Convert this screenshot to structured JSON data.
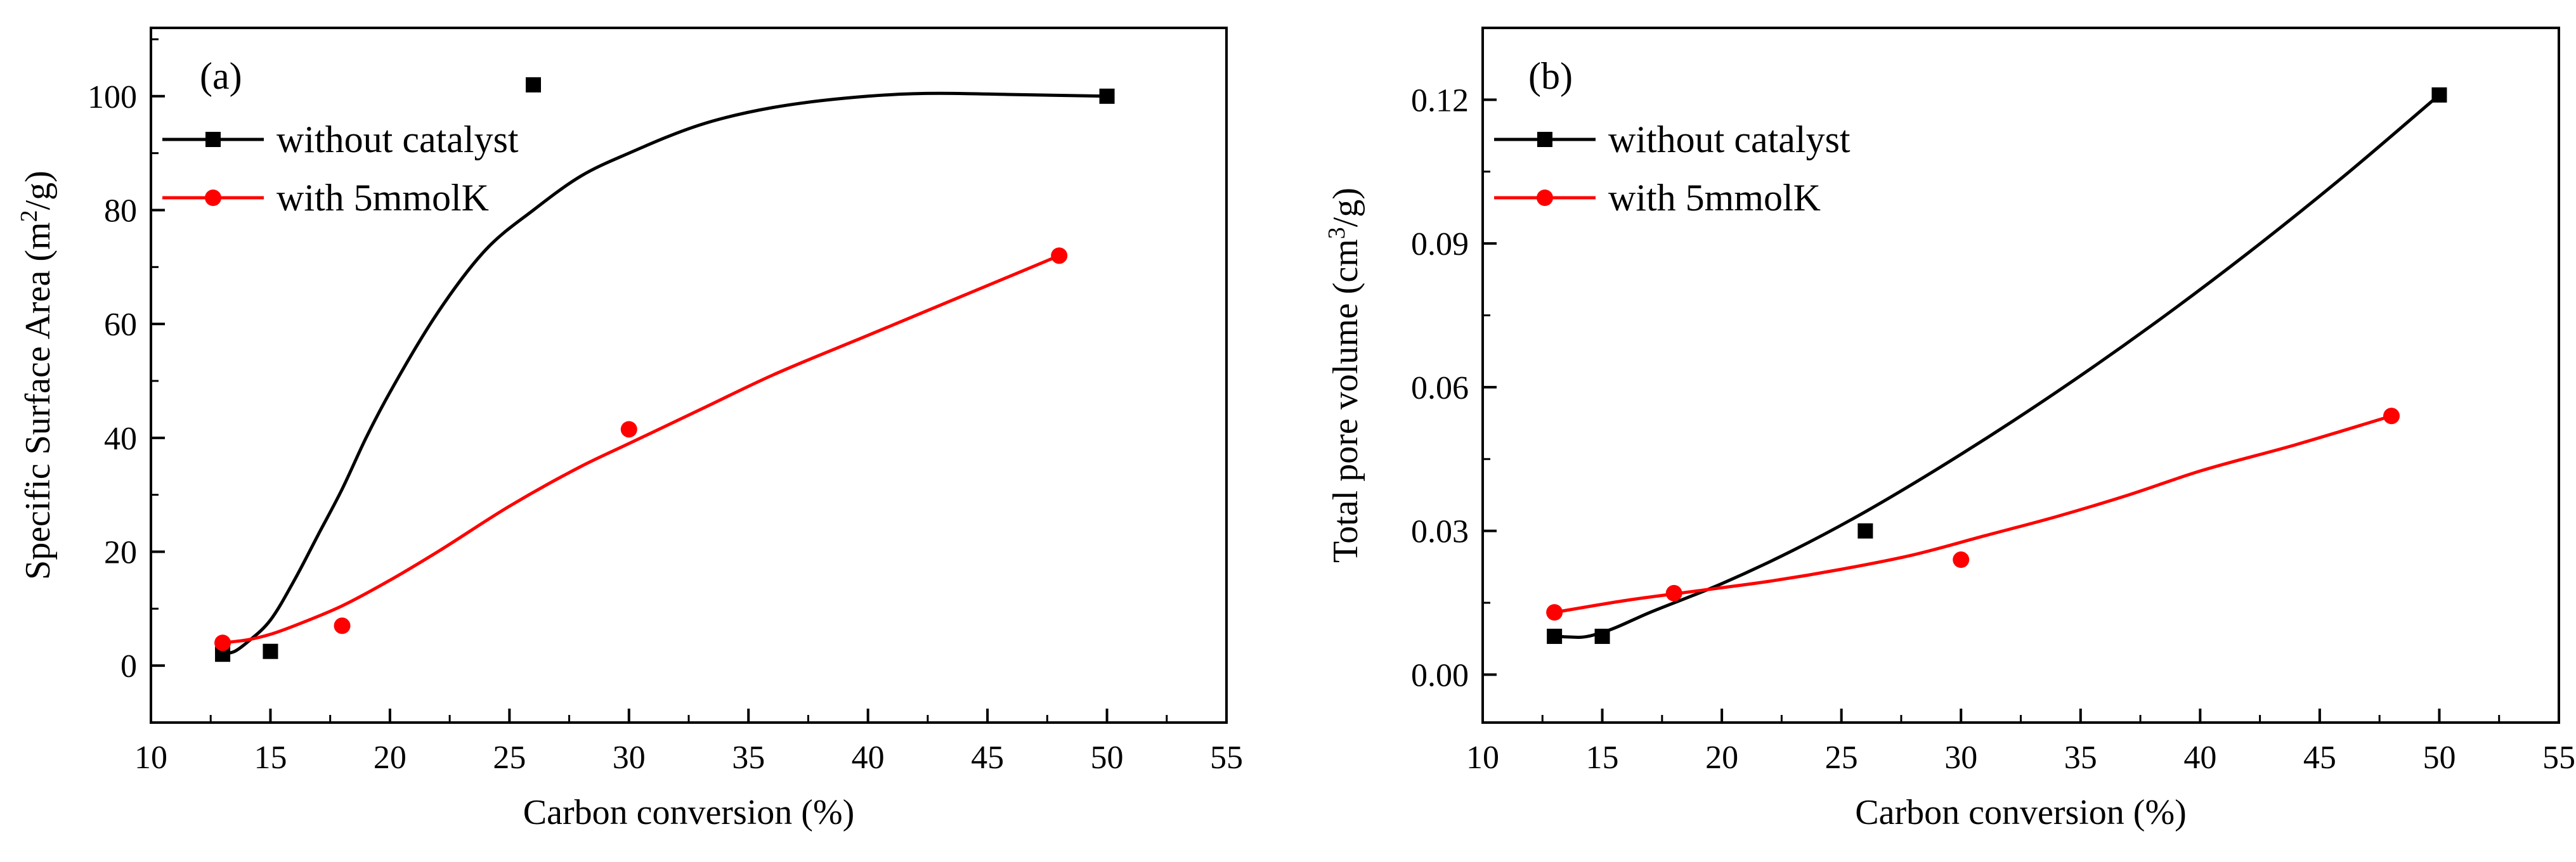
{
  "chart_data": [
    {
      "type": "scatter",
      "panel_label": "(a)",
      "xlabel": "Carbon conversion (%)",
      "ylabel": {
        "prefix": "Specific Surface Area (m",
        "sup": "2",
        "suffix": "/g)"
      },
      "xlim": [
        10,
        55
      ],
      "ylim": [
        -10,
        112
      ],
      "xticks": [
        "10",
        "15",
        "20",
        "25",
        "30",
        "35",
        "40",
        "45",
        "50",
        "55"
      ],
      "yticks": [
        "0",
        "20",
        "40",
        "60",
        "80",
        "100"
      ],
      "legend_position": "top-left",
      "series": [
        {
          "name": "without catalyst",
          "color": "#000000",
          "marker": "square",
          "points": [
            [
              13,
              2
            ],
            [
              15,
              2.5
            ],
            [
              26,
              102
            ],
            [
              50,
              100
            ]
          ],
          "fit_curve": [
            [
              13,
              2
            ],
            [
              13.5,
              2.5
            ],
            [
              14,
              4
            ],
            [
              15,
              8
            ],
            [
              16,
              15
            ],
            [
              17,
              23
            ],
            [
              18,
              31
            ],
            [
              19,
              40
            ],
            [
              20,
              48
            ],
            [
              22,
              62
            ],
            [
              24,
              73
            ],
            [
              26,
              80
            ],
            [
              28,
              86
            ],
            [
              30,
              90
            ],
            [
              33,
              95
            ],
            [
              36,
              98
            ],
            [
              40,
              100
            ],
            [
              43,
              100.5
            ],
            [
              46,
              100.3
            ],
            [
              50,
              100
            ]
          ]
        },
        {
          "name": "with 5mmolK",
          "color": "#ff0000",
          "marker": "circle",
          "points": [
            [
              13,
              4
            ],
            [
              18,
              7
            ],
            [
              30,
              41.5
            ],
            [
              48,
              72
            ]
          ],
          "fit_curve": [
            [
              13,
              4
            ],
            [
              14,
              4.5
            ],
            [
              15,
              5.5
            ],
            [
              16,
              7
            ],
            [
              18,
              10.5
            ],
            [
              20,
              15
            ],
            [
              22,
              20
            ],
            [
              25,
              28
            ],
            [
              28,
              35
            ],
            [
              30,
              39
            ],
            [
              33,
              45
            ],
            [
              36,
              51
            ],
            [
              40,
              58
            ],
            [
              44,
              65
            ],
            [
              48,
              72
            ]
          ]
        }
      ]
    },
    {
      "type": "scatter",
      "panel_label": "(b)",
      "xlabel": "Carbon conversion (%)",
      "ylabel": {
        "prefix": "Total pore volume (cm",
        "sup": "3",
        "suffix": "/g)"
      },
      "xlim": [
        10,
        55
      ],
      "ylim": [
        -0.01,
        0.135
      ],
      "xticks": [
        "10",
        "15",
        "20",
        "25",
        "30",
        "35",
        "40",
        "45",
        "50",
        "55"
      ],
      "yticks": [
        "0.00",
        "0.03",
        "0.06",
        "0.09",
        "0.12"
      ],
      "legend_position": "top-left",
      "series": [
        {
          "name": "without catalyst",
          "color": "#000000",
          "marker": "square",
          "points": [
            [
              13,
              0.008
            ],
            [
              15,
              0.008
            ],
            [
              26,
              0.03
            ],
            [
              50,
              0.121
            ]
          ],
          "fit_curve": [
            [
              13,
              0.008
            ],
            [
              14,
              0.0078
            ],
            [
              15,
              0.0088
            ],
            [
              17,
              0.013
            ],
            [
              20,
              0.019
            ],
            [
              23,
              0.026
            ],
            [
              26,
              0.034
            ],
            [
              30,
              0.046
            ],
            [
              34,
              0.059
            ],
            [
              38,
              0.073
            ],
            [
              42,
              0.088
            ],
            [
              46,
              0.104
            ],
            [
              50,
              0.121
            ]
          ]
        },
        {
          "name": "with 5mmolK",
          "color": "#ff0000",
          "marker": "circle",
          "points": [
            [
              13,
              0.013
            ],
            [
              18,
              0.017
            ],
            [
              30,
              0.024
            ],
            [
              48,
              0.054
            ]
          ],
          "fit_curve": [
            [
              13,
              0.013
            ],
            [
              16,
              0.0155
            ],
            [
              19,
              0.0175
            ],
            [
              22,
              0.0195
            ],
            [
              25,
              0.022
            ],
            [
              28,
              0.025
            ],
            [
              31,
              0.029
            ],
            [
              34,
              0.033
            ],
            [
              37,
              0.0375
            ],
            [
              40,
              0.0425
            ],
            [
              44,
              0.048
            ],
            [
              48,
              0.054
            ]
          ]
        }
      ]
    }
  ]
}
